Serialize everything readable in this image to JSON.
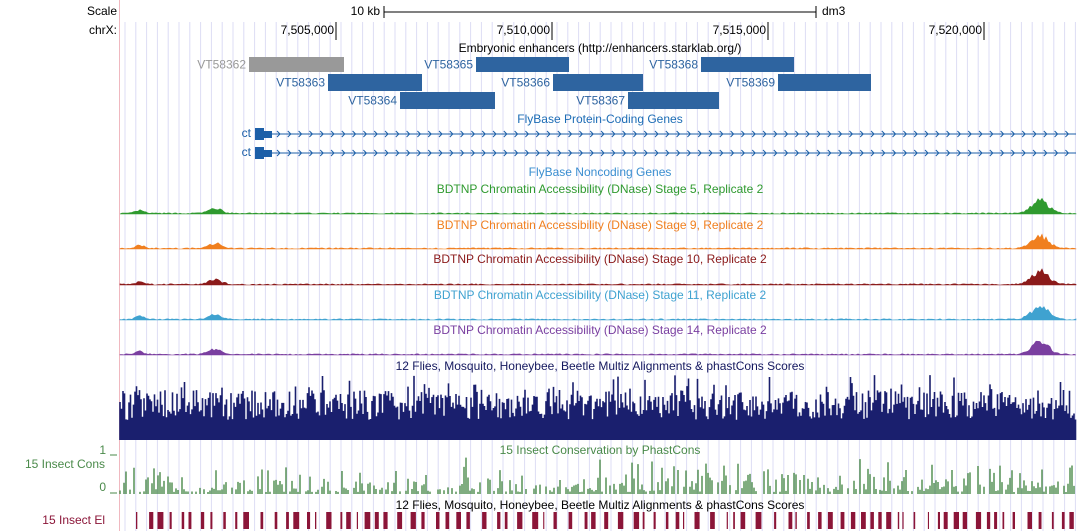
{
  "ruler": {
    "scale_label": "Scale",
    "chrom_label": "chrX:",
    "scale_bar": "10 kb",
    "assembly": "dm3",
    "positions": [
      "7,505,000",
      "7,510,000",
      "7,515,000",
      "7,520,000"
    ]
  },
  "enhancer_track": {
    "title": "Embryonic enhancers (http://enhancers.starklab.org/)",
    "items": [
      "VT58362",
      "VT58363",
      "VT58364",
      "VT58365",
      "VT58366",
      "VT58367",
      "VT58368",
      "VT58369"
    ]
  },
  "gene_tracks": {
    "coding_title": "FlyBase Protein-Coding Genes",
    "genes": [
      "ct",
      "ct"
    ],
    "noncoding_title": "FlyBase Noncoding Genes"
  },
  "dnase_tracks": [
    "BDTNP Chromatin Accessibility (DNase) Stage 5, Replicate 2",
    "BDTNP Chromatin Accessibility (DNase) Stage 9, Replicate 2",
    "BDTNP Chromatin Accessibility (DNase) Stage 10, Replicate 2",
    "BDTNP Chromatin Accessibility (DNase) Stage 11, Replicate 2",
    "BDTNP Chromatin Accessibility (DNase) Stage 14, Replicate 2"
  ],
  "conservation": {
    "multiz_title": "12 Flies, Mosquito, Honeybee, Beetle Multiz Alignments & phastCons Scores",
    "cons_title": "15 Insect Conservation by PhastCons",
    "cons_label": "15 Insect Cons",
    "cons_max": "1",
    "cons_min": "0",
    "el_title": "12 Flies, Mosquito, Honeybee, Beetle Multiz Alignments & phastCons Scores",
    "el_label": "15 Insect El"
  }
}
